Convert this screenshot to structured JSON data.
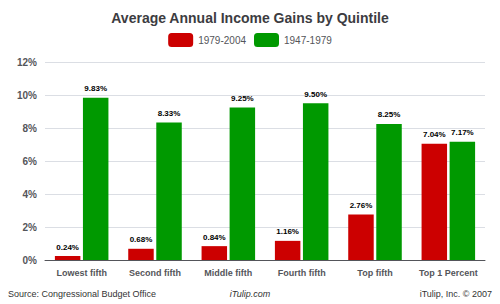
{
  "chart_data": {
    "type": "bar",
    "title": "Average Annual Income Gains by Quintile",
    "categories": [
      "Lowest fifth",
      "Second fifth",
      "Middle fifth",
      "Fourth fifth",
      "Top fifth",
      "Top 1 Percent"
    ],
    "series": [
      {
        "name": "1979-2004",
        "color": "#cc0000",
        "values": [
          0.24,
          0.68,
          0.84,
          1.16,
          2.76,
          7.04
        ],
        "value_labels": [
          "0.24%",
          "0.68%",
          "0.84%",
          "1.16%",
          "2.76%",
          "7.04%"
        ]
      },
      {
        "name": "1947-1979",
        "color": "#009900",
        "values": [
          9.83,
          8.33,
          9.25,
          9.5,
          8.25,
          7.17
        ],
        "value_labels": [
          "9.83%",
          "8.33%",
          "9.25%",
          "9.50%",
          "8.25%",
          "7.17%"
        ]
      }
    ],
    "ylim": [
      0,
      12
    ],
    "yticks": [
      {
        "value": 0,
        "label": "0%"
      },
      {
        "value": 2,
        "label": "2%"
      },
      {
        "value": 4,
        "label": "4%"
      },
      {
        "value": 6,
        "label": "6%"
      },
      {
        "value": 8,
        "label": "8%"
      },
      {
        "value": 10,
        "label": "10%"
      },
      {
        "value": 12,
        "label": "12%"
      }
    ],
    "grid": true,
    "legend": "top",
    "data_labels": true,
    "annotations": [
      "Source: Congressional Budget Office",
      "iTulip.com",
      "iTulip, Inc. © 2007"
    ]
  }
}
